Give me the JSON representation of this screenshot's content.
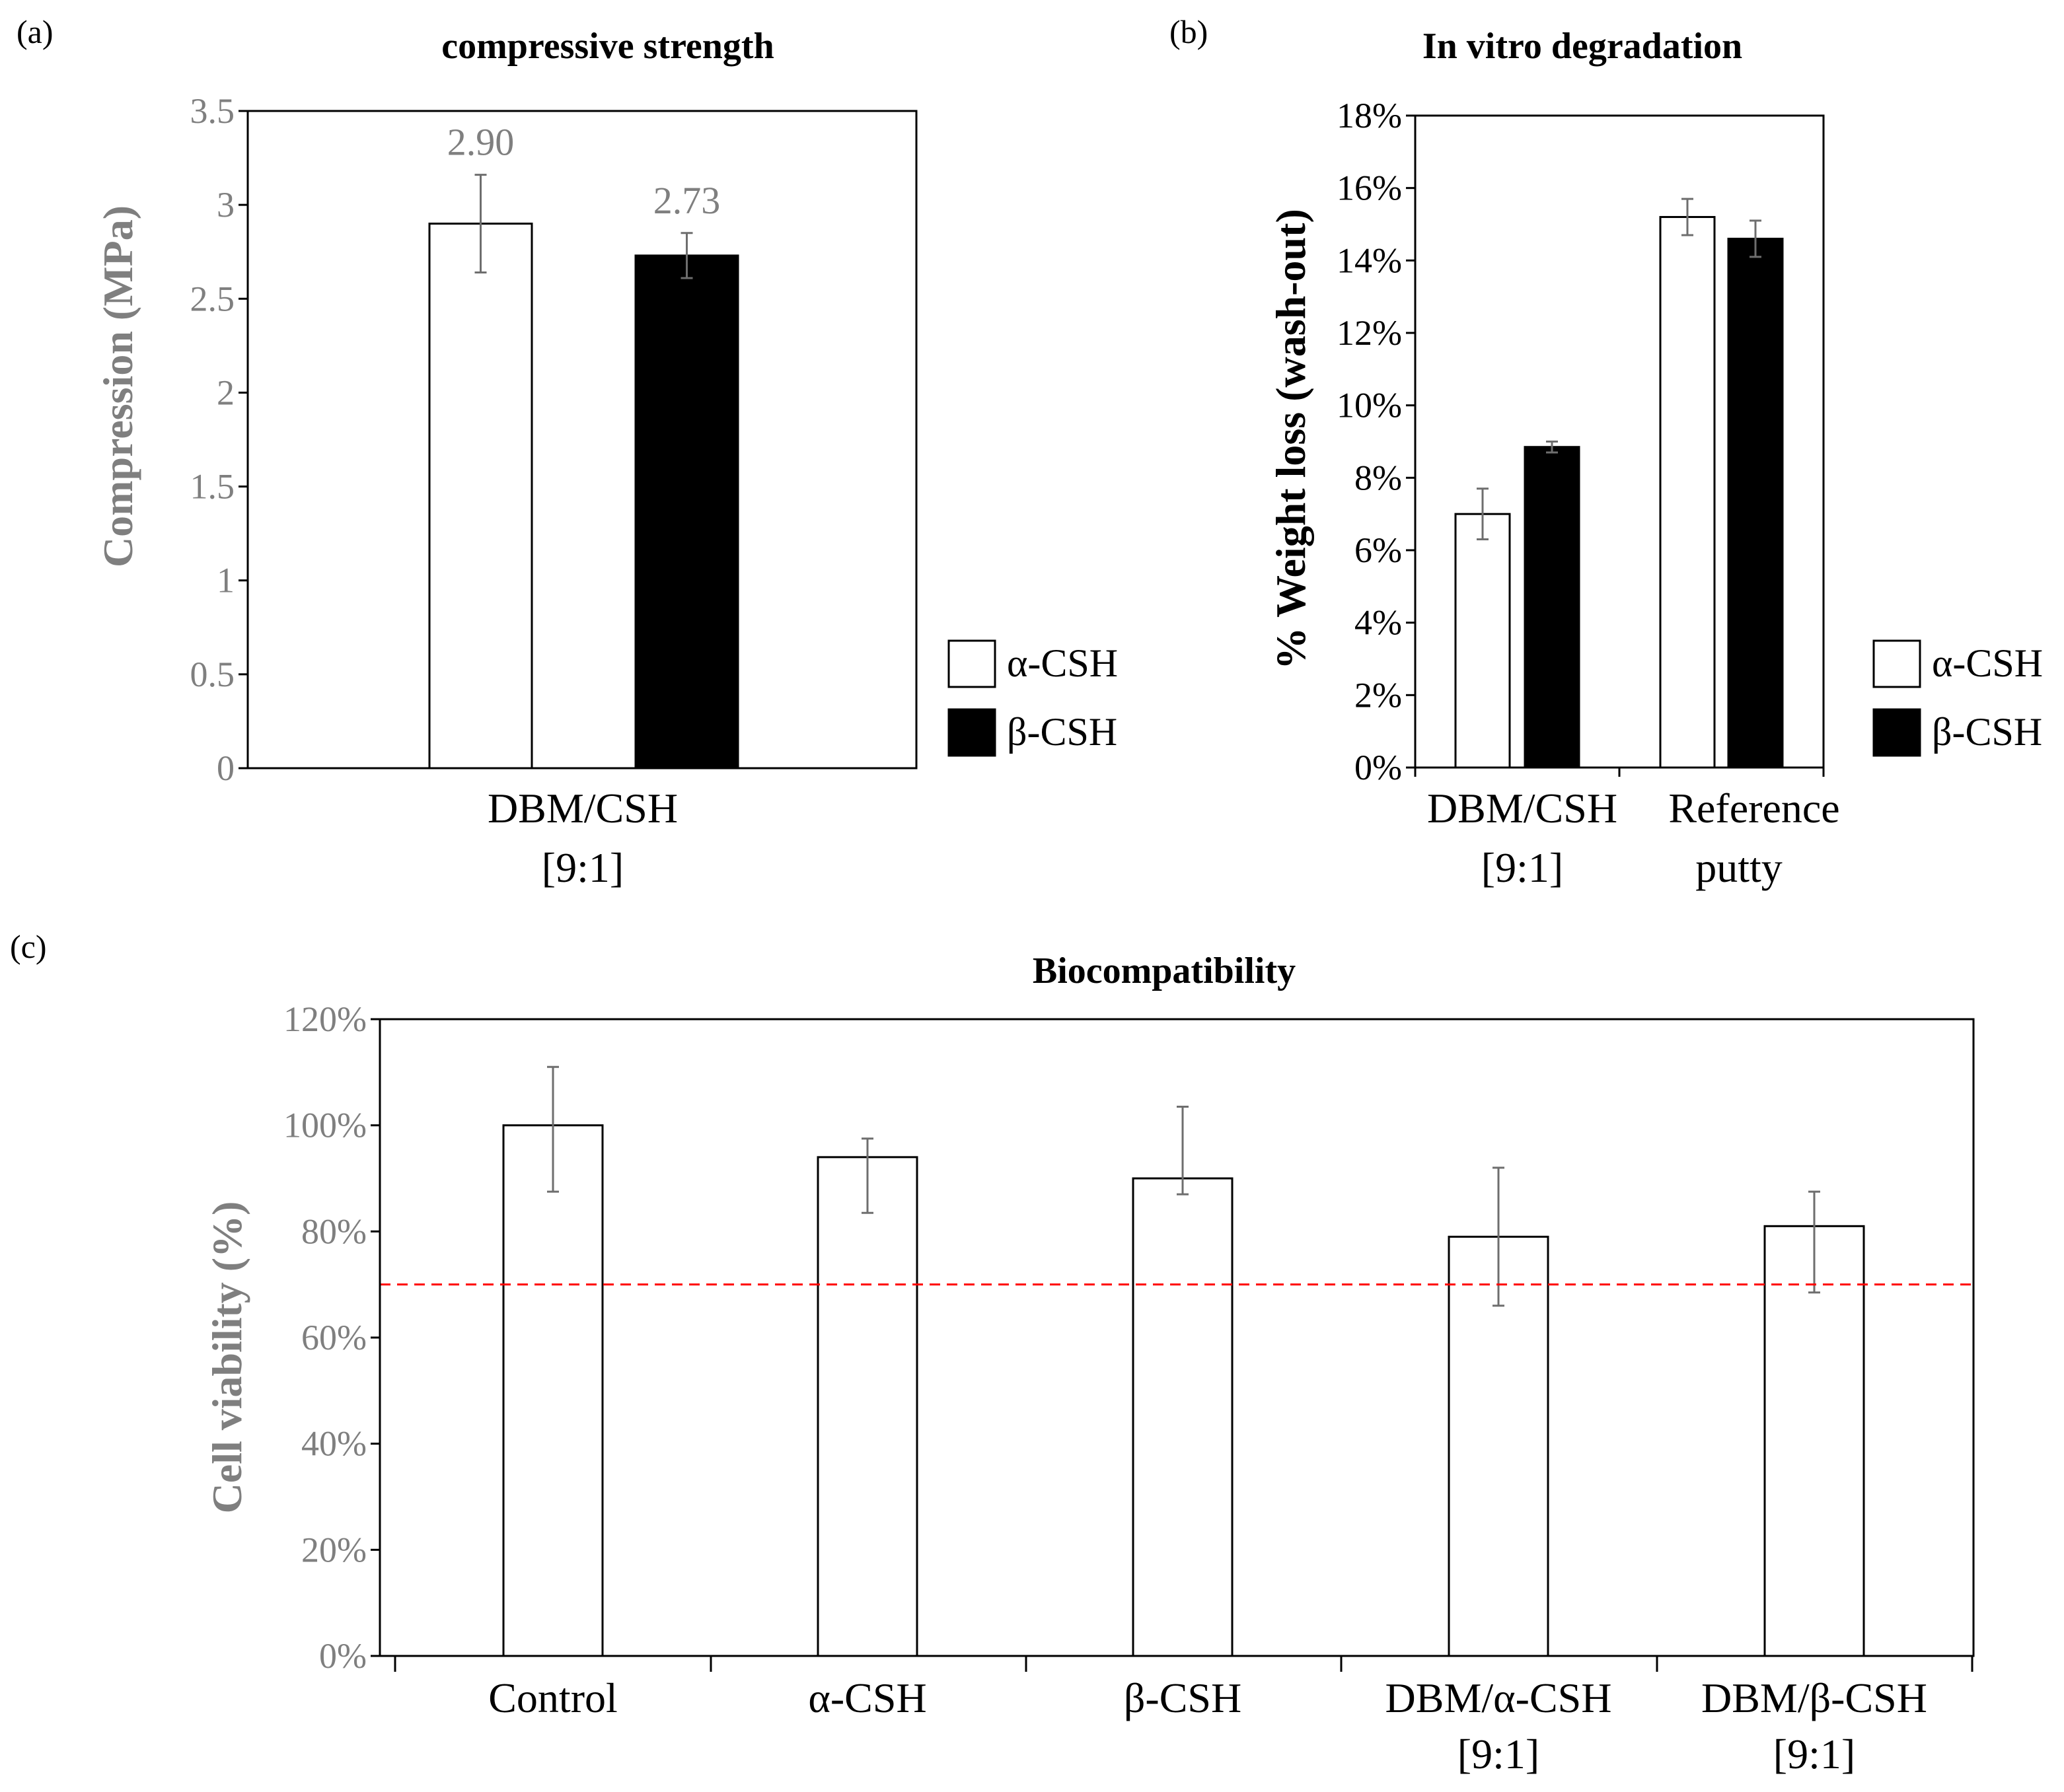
{
  "chart_data": [
    {
      "panel": "(a)",
      "type": "bar",
      "title": "compressive strength",
      "ylabel": "Compression (MPa)",
      "xlabel": "",
      "ylim": [
        0,
        3.5
      ],
      "yticks": [
        "0",
        "0.5",
        "1",
        "1.5",
        "2",
        "2.5",
        "3",
        "3.5"
      ],
      "categories": [
        [
          "DBM/CSH",
          "[9:1]"
        ]
      ],
      "series": [
        {
          "name": "α-CSH",
          "fill": "#ffffff",
          "values": [
            2.9
          ],
          "errors": [
            0.26
          ],
          "labels": [
            "2.90"
          ]
        },
        {
          "name": "β-CSH",
          "fill": "#000000",
          "values": [
            2.73
          ],
          "errors": [
            0.12
          ],
          "labels": [
            "2.73"
          ]
        }
      ],
      "legend": [
        "α-CSH",
        "β-CSH"
      ]
    },
    {
      "panel": "(b)",
      "type": "bar",
      "title": "In vitro degradation",
      "ylabel": "% Weight loss (wash-out)",
      "xlabel": "",
      "ylim": [
        0,
        18
      ],
      "yticks": [
        "0%",
        "2%",
        "4%",
        "6%",
        "8%",
        "10%",
        "12%",
        "14%",
        "16%",
        "18%"
      ],
      "categories": [
        [
          "DBM/CSH",
          "[9:1]"
        ],
        [
          "Reference",
          "putty"
        ]
      ],
      "series": [
        {
          "name": "α-CSH",
          "fill": "#ffffff",
          "values": [
            7.0,
            15.2
          ],
          "errors": [
            0.7,
            0.5
          ]
        },
        {
          "name": "β-CSH",
          "fill": "#000000",
          "values": [
            8.85,
            14.6
          ],
          "errors": [
            0.15,
            0.5
          ]
        }
      ],
      "legend": [
        "α-CSH",
        "β-CSH"
      ]
    },
    {
      "panel": "(c)",
      "type": "bar",
      "title": "Biocompatibility",
      "ylabel": "Cell viability (%)",
      "xlabel": "",
      "ylim": [
        0,
        120
      ],
      "yticks": [
        "0%",
        "20%",
        "40%",
        "60%",
        "80%",
        "100%",
        "120%"
      ],
      "categories": [
        [
          "Control"
        ],
        [
          "α-CSH"
        ],
        [
          "β-CSH"
        ],
        [
          "DBM/α-CSH",
          "[9:1]"
        ],
        [
          "DBM/β-CSH",
          "[9:1]"
        ]
      ],
      "series": [
        {
          "name": "Cell viability",
          "fill": "#ffffff",
          "values": [
            100,
            94,
            90,
            79,
            81
          ],
          "err_hi": [
            111,
            97.5,
            103.5,
            92,
            87.5
          ],
          "err_lo": [
            87.5,
            83.5,
            87,
            66,
            68.5
          ]
        }
      ],
      "reference_line": {
        "value": 70,
        "color": "#ff0000",
        "style": "dashed"
      }
    }
  ]
}
